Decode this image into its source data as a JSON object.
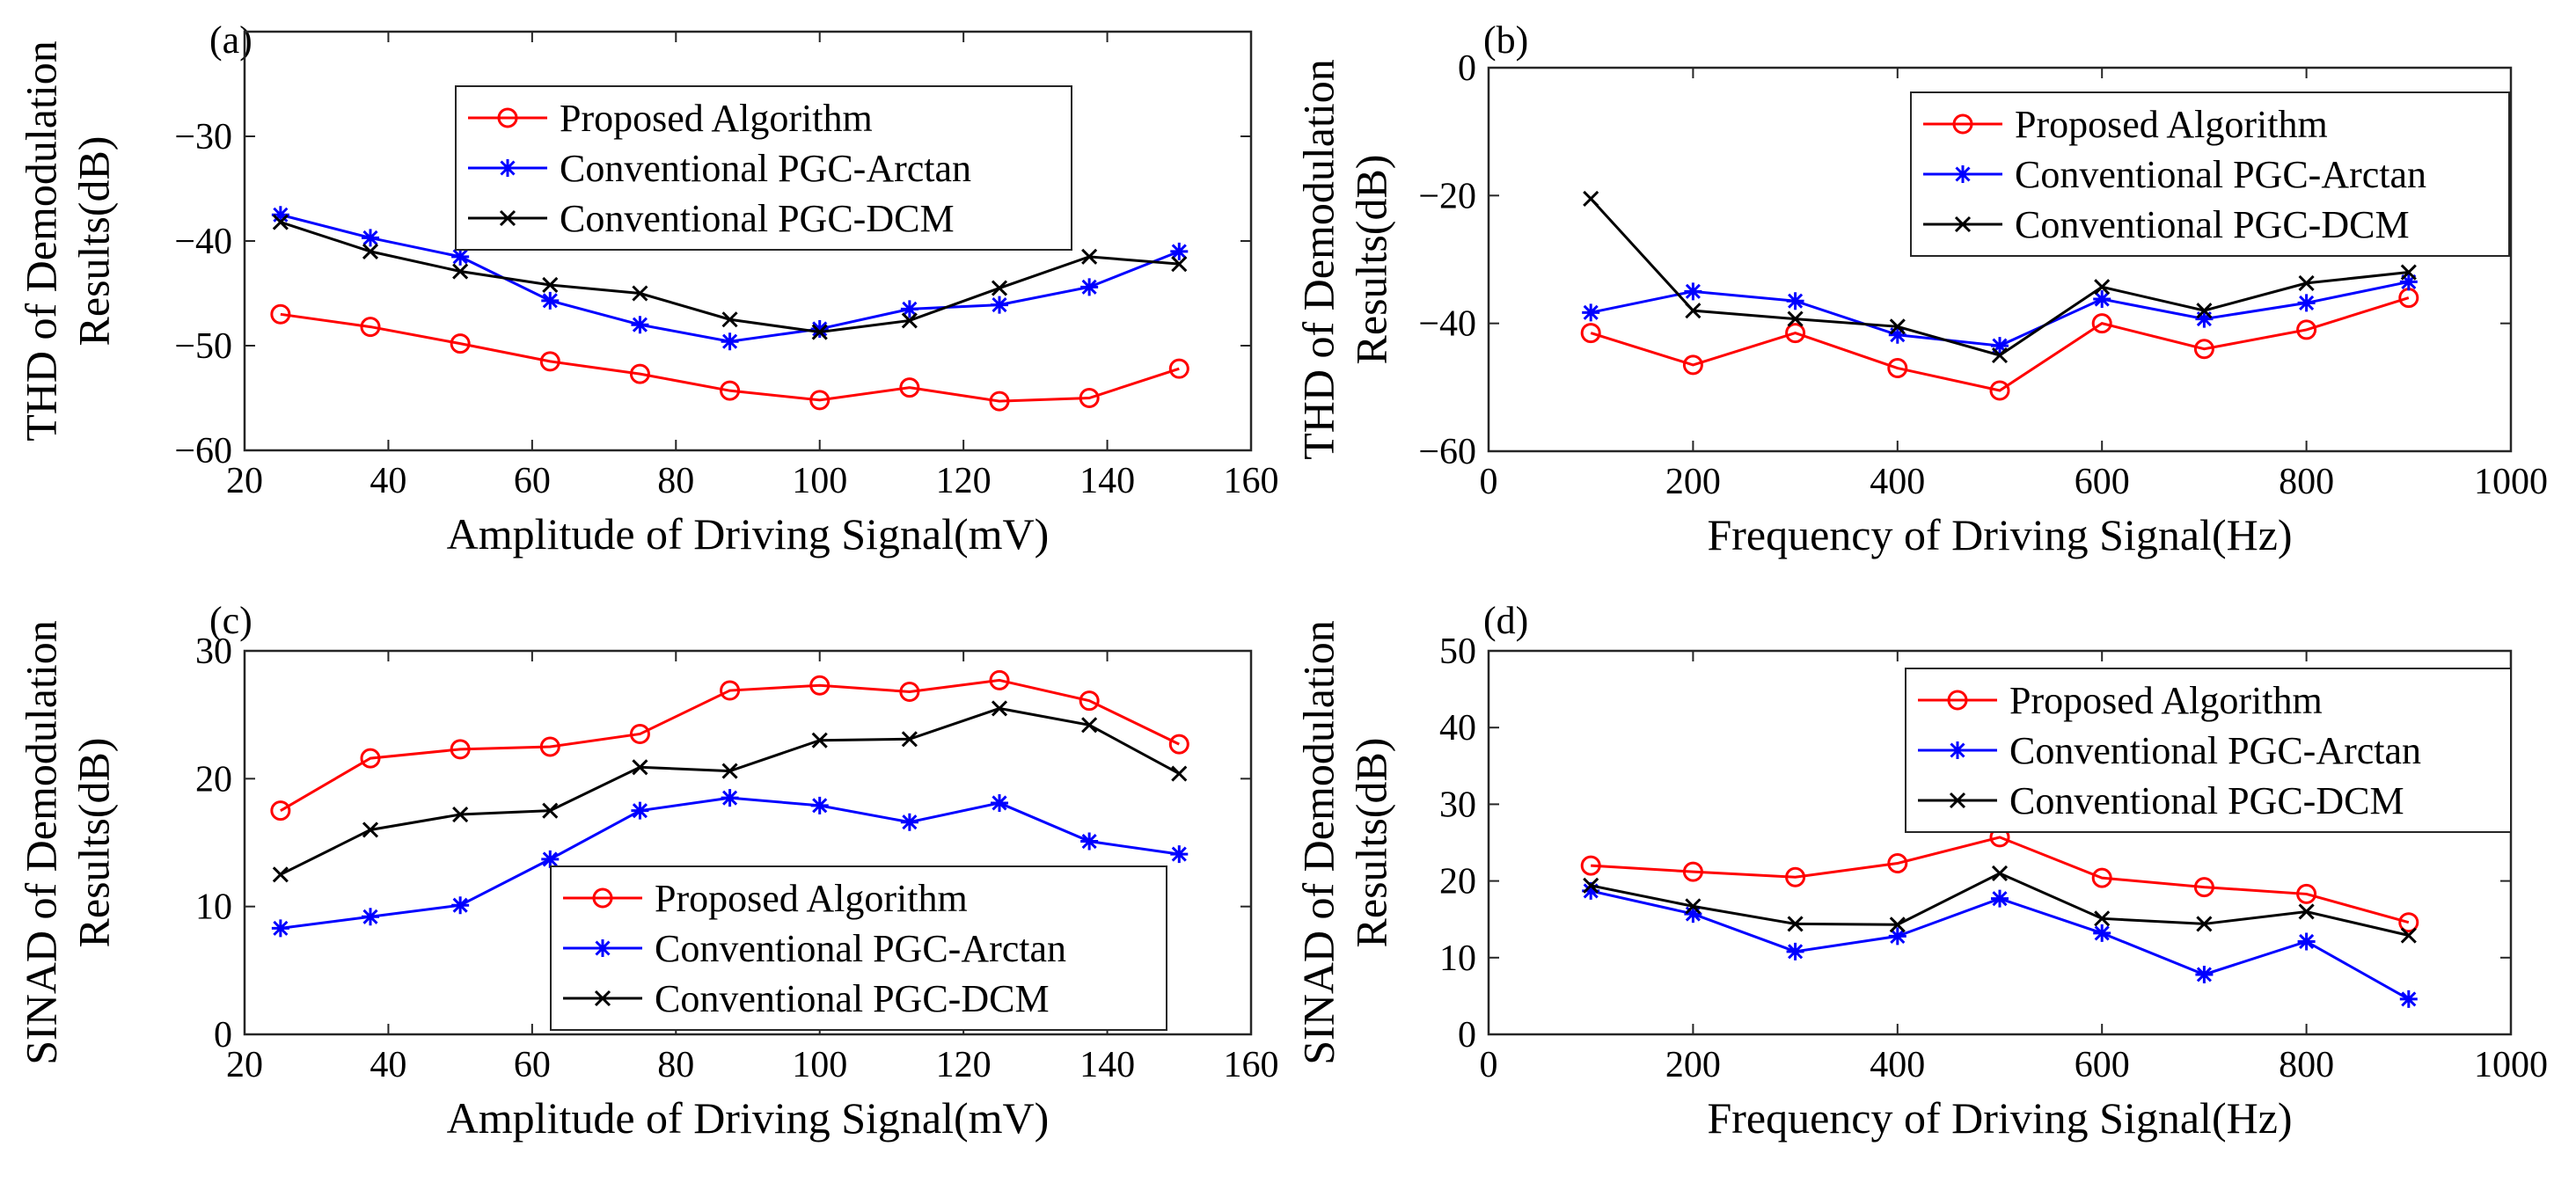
{
  "figure_title": "",
  "colors": {
    "proposed": "#ff0000",
    "arctan": "#0000ff",
    "dcm": "#000000",
    "axes": "#262626"
  },
  "chart_data": [
    {
      "panel": "(a)",
      "type": "line",
      "title": "",
      "xlabel": "Amplitude of Driving Signal(mV)",
      "ylabel": [
        "THD of Demodulation",
        "Results(dB)"
      ],
      "xlim": [
        20,
        160
      ],
      "ylim": [
        -60,
        -20
      ],
      "xticks": [
        20,
        40,
        60,
        80,
        100,
        120,
        140,
        160
      ],
      "yticks": [
        -60,
        -50,
        -40,
        -30
      ],
      "xtick_labels": [
        "20",
        "40",
        "60",
        "80",
        "100",
        "120",
        "140",
        "160"
      ],
      "ytick_labels": [
        "−60",
        "−50",
        "−40",
        "−30"
      ],
      "legend_position": "top-center",
      "x": [
        25,
        37.5,
        50,
        62.5,
        75,
        87.5,
        100,
        112.5,
        125,
        137.5,
        150
      ],
      "series": [
        {
          "name": "Proposed Algorithm",
          "marker": "circle",
          "color": "#ff0000",
          "values": [
            -47,
            -48.2,
            -49.8,
            -51.5,
            -52.7,
            -54.3,
            -55.2,
            -54,
            -55.3,
            -55,
            -52.2
          ]
        },
        {
          "name": "Conventional PGC-Arctan",
          "marker": "asterisk",
          "color": "#0000ff",
          "values": [
            -37.5,
            -39.7,
            -41.5,
            -45.7,
            -48,
            -49.6,
            -48.4,
            -46.5,
            -46.1,
            -44.4,
            -41
          ]
        },
        {
          "name": "Conventional PGC-DCM",
          "marker": "cross",
          "color": "#000000",
          "values": [
            -38.2,
            -41,
            -42.9,
            -44.2,
            -45,
            -47.5,
            -48.7,
            -47.6,
            -44.5,
            -41.5,
            -42.2
          ]
        }
      ]
    },
    {
      "panel": "(b)",
      "type": "line",
      "title": "",
      "xlabel": "Frequency of Driving Signal(Hz)",
      "ylabel": [
        "THD of Demodulation",
        "Results(dB)"
      ],
      "xlim": [
        0,
        1000
      ],
      "ylim": [
        -60,
        0
      ],
      "xticks": [
        0,
        200,
        400,
        600,
        800,
        1000
      ],
      "yticks": [
        -60,
        -40,
        -20,
        0
      ],
      "xtick_labels": [
        "0",
        "200",
        "400",
        "600",
        "800",
        "1000"
      ],
      "ytick_labels": [
        "−60",
        "−40",
        "−20",
        "0"
      ],
      "legend_position": "top-right",
      "x": [
        100,
        200,
        300,
        400,
        500,
        600,
        700,
        800,
        900
      ],
      "series": [
        {
          "name": "Proposed Algorithm",
          "marker": "circle",
          "color": "#ff0000",
          "values": [
            -41.5,
            -46.5,
            -41.5,
            -47,
            -50.5,
            -40,
            -44,
            -41,
            -36
          ]
        },
        {
          "name": "Conventional PGC-Arctan",
          "marker": "asterisk",
          "color": "#0000ff",
          "values": [
            -38.3,
            -35,
            -36.5,
            -41.8,
            -43.5,
            -36.2,
            -39.3,
            -36.8,
            -33.5
          ]
        },
        {
          "name": "Conventional PGC-DCM",
          "marker": "cross",
          "color": "#000000",
          "values": [
            -20.5,
            -38,
            -39.3,
            -40.5,
            -45,
            -34.3,
            -38,
            -33.7,
            -32
          ]
        }
      ]
    },
    {
      "panel": "(c)",
      "type": "line",
      "title": "",
      "xlabel": "Amplitude of Driving Signal(mV)",
      "ylabel": [
        "SINAD of Demodulation",
        "Results(dB)"
      ],
      "xlim": [
        20,
        160
      ],
      "ylim": [
        0,
        30
      ],
      "xticks": [
        20,
        40,
        60,
        80,
        100,
        120,
        140,
        160
      ],
      "yticks": [
        0,
        10,
        20,
        30
      ],
      "xtick_labels": [
        "20",
        "40",
        "60",
        "80",
        "100",
        "120",
        "140",
        "160"
      ],
      "ytick_labels": [
        "0",
        "10",
        "20",
        "30"
      ],
      "legend_position": "bottom-center",
      "x": [
        25,
        37.5,
        50,
        62.5,
        75,
        87.5,
        100,
        112.5,
        125,
        137.5,
        150
      ],
      "series": [
        {
          "name": "Proposed Algorithm",
          "marker": "circle",
          "color": "#ff0000",
          "values": [
            17.5,
            21.6,
            22.3,
            22.5,
            23.5,
            26.9,
            27.3,
            26.8,
            27.7,
            26.1,
            22.7
          ]
        },
        {
          "name": "Conventional PGC-Arctan",
          "marker": "asterisk",
          "color": "#0000ff",
          "values": [
            8.3,
            9.2,
            10.1,
            13.7,
            17.5,
            18.5,
            17.9,
            16.6,
            18.1,
            15.1,
            14.1
          ]
        },
        {
          "name": "Conventional PGC-DCM",
          "marker": "cross",
          "color": "#000000",
          "values": [
            12.5,
            16,
            17.2,
            17.5,
            20.9,
            20.6,
            23,
            23.1,
            25.5,
            24.2,
            20.4
          ]
        }
      ]
    },
    {
      "panel": "(d)",
      "type": "line",
      "title": "",
      "xlabel": "Frequency of Driving Signal(Hz)",
      "ylabel": [
        "SINAD of Demodulation",
        "Results(dB)"
      ],
      "xlim": [
        0,
        1000
      ],
      "ylim": [
        0,
        50
      ],
      "xticks": [
        0,
        200,
        400,
        600,
        800,
        1000
      ],
      "yticks": [
        0,
        10,
        20,
        30,
        40,
        50
      ],
      "xtick_labels": [
        "0",
        "200",
        "400",
        "600",
        "800",
        "1000"
      ],
      "ytick_labels": [
        "0",
        "10",
        "20",
        "30",
        "40",
        "50"
      ],
      "legend_position": "top-right",
      "x": [
        100,
        200,
        300,
        400,
        500,
        600,
        700,
        800,
        900
      ],
      "series": [
        {
          "name": "Proposed Algorithm",
          "marker": "circle",
          "color": "#ff0000",
          "values": [
            22,
            21.2,
            20.5,
            22.3,
            25.7,
            20.4,
            19.2,
            18.3,
            14.6
          ]
        },
        {
          "name": "Conventional PGC-Arctan",
          "marker": "asterisk",
          "color": "#0000ff",
          "values": [
            18.7,
            15.7,
            10.8,
            12.8,
            17.7,
            13.2,
            7.8,
            12.1,
            4.6
          ]
        },
        {
          "name": "Conventional PGC-DCM",
          "marker": "cross",
          "color": "#000000",
          "values": [
            19.4,
            16.7,
            14.4,
            14.3,
            21,
            15.1,
            14.4,
            16,
            12.9
          ]
        }
      ]
    }
  ]
}
